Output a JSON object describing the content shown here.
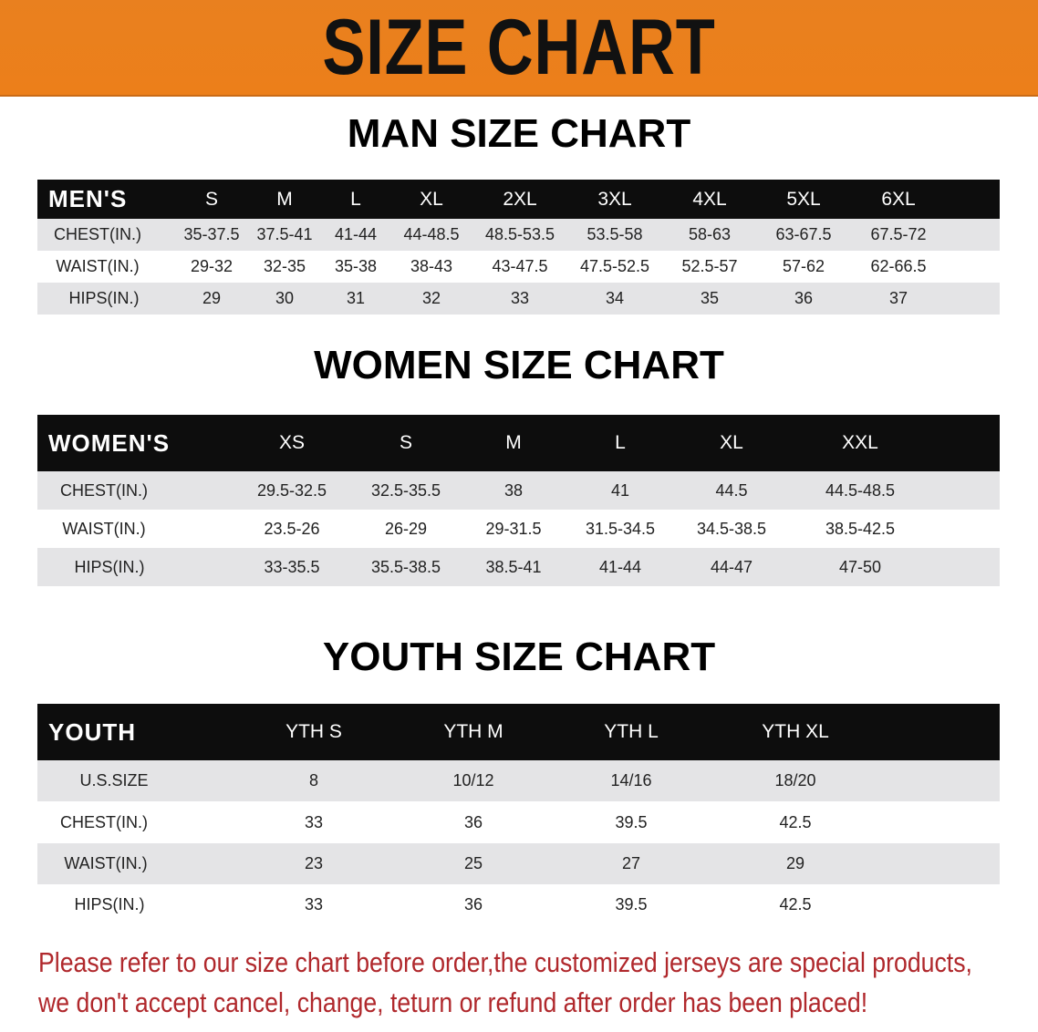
{
  "banner_title": "SIZE CHART",
  "colors": {
    "banner": "#ec7f1a",
    "header_row": "#0d0d0d",
    "stripe": "#e4e4e6",
    "note": "#b0282c"
  },
  "men": {
    "title": "MAN SIZE CHART",
    "header": [
      "MEN'S",
      "S",
      "M",
      "L",
      "XL",
      "2XL",
      "3XL",
      "4XL",
      "5XL",
      "6XL"
    ],
    "rows": [
      [
        "CHEST(IN.)",
        "35-37.5",
        "37.5-41",
        "41-44",
        "44-48.5",
        "48.5-53.5",
        "53.5-58",
        "58-63",
        "63-67.5",
        "67.5-72"
      ],
      [
        "WAIST(IN.)",
        "29-32",
        "32-35",
        "35-38",
        "38-43",
        "43-47.5",
        "47.5-52.5",
        "52.5-57",
        "57-62",
        "62-66.5"
      ],
      [
        "HIPS(IN.)",
        "29",
        "30",
        "31",
        "32",
        "33",
        "34",
        "35",
        "36",
        "37"
      ]
    ]
  },
  "women": {
    "title": "WOMEN SIZE CHART",
    "header": [
      "WOMEN'S",
      "XS",
      "S",
      "M",
      "L",
      "XL",
      "XXL"
    ],
    "rows": [
      [
        "CHEST(IN.)",
        "29.5-32.5",
        "32.5-35.5",
        "38",
        "41",
        "44.5",
        "44.5-48.5"
      ],
      [
        "WAIST(IN.)",
        "23.5-26",
        "26-29",
        "29-31.5",
        "31.5-34.5",
        "34.5-38.5",
        "38.5-42.5"
      ],
      [
        "HIPS(IN.)",
        "33-35.5",
        "35.5-38.5",
        "38.5-41",
        "41-44",
        "44-47",
        "47-50"
      ]
    ]
  },
  "youth": {
    "title": "YOUTH SIZE CHART",
    "header": [
      "YOUTH",
      "YTH S",
      "YTH M",
      "YTH L",
      "YTH XL"
    ],
    "rows": [
      [
        "U.S.SIZE",
        "8",
        "10/12",
        "14/16",
        "18/20"
      ],
      [
        "CHEST(IN.)",
        "33",
        "36",
        "39.5",
        "42.5"
      ],
      [
        "WAIST(IN.)",
        "23",
        "25",
        "27",
        "29"
      ],
      [
        "HIPS(IN.)",
        "33",
        "36",
        "39.5",
        "42.5"
      ]
    ]
  },
  "notes": [
    "Please refer to our size chart before order,the customized jerseys are special products,",
    "we don't accept cancel, change, teturn or refund after order has been placed!"
  ]
}
